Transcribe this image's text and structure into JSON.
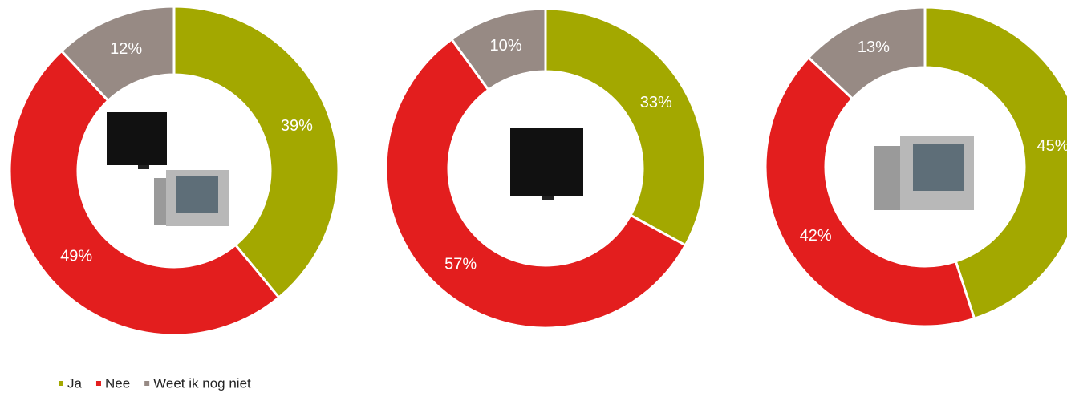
{
  "legend": {
    "categories": [
      "Ja",
      "Nee",
      "Weet ik nog niet"
    ],
    "colors": [
      "#a3a800",
      "#e31e1e",
      "#978a84"
    ]
  },
  "chart_data": [
    {
      "type": "pie",
      "donut": true,
      "values": [
        39,
        49,
        12
      ],
      "value_labels": [
        "39%",
        "49%",
        "12%"
      ]
    },
    {
      "type": "pie",
      "donut": true,
      "values": [
        33,
        57,
        10
      ],
      "value_labels": [
        "33%",
        "57%",
        "10%"
      ]
    },
    {
      "type": "pie",
      "donut": true,
      "values": [
        45,
        42,
        13
      ],
      "value_labels": [
        "45%",
        "42%",
        "13%"
      ]
    }
  ]
}
